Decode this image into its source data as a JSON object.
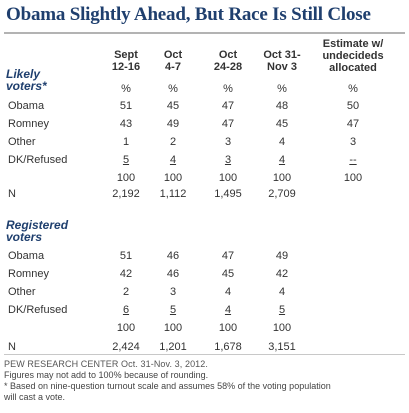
{
  "title": "Obama Slightly Ahead, But Race Is Still Close",
  "chart_data": {
    "type": "table",
    "columns": [
      {
        "line1": "Sept",
        "line2": "12-16"
      },
      {
        "line1": "Oct",
        "line2": "4-7"
      },
      {
        "line1": "Oct",
        "line2": "24-28"
      },
      {
        "line1": "Oct 31-",
        "line2": "Nov 3"
      },
      {
        "line1": "Estimate w/",
        "line2": "undecideds",
        "line3": "allocated"
      }
    ],
    "groups": [
      {
        "label_line1": "Likely",
        "label_line2": "voters*",
        "rows": [
          {
            "label": "",
            "values": [
              "%",
              "%",
              "%",
              "%",
              "%"
            ]
          },
          {
            "label": "Obama",
            "values": [
              "51",
              "45",
              "47",
              "48",
              "50"
            ]
          },
          {
            "label": "Romney",
            "values": [
              "43",
              "49",
              "47",
              "45",
              "47"
            ]
          },
          {
            "label": "Other",
            "values": [
              "1",
              "2",
              "3",
              "4",
              "3"
            ]
          },
          {
            "label": "DK/Refused",
            "values": [
              "5",
              "4",
              "3",
              "4",
              "--"
            ],
            "underline": true
          },
          {
            "label": "",
            "values": [
              "100",
              "100",
              "100",
              "100",
              "100"
            ]
          },
          {
            "label": "N",
            "values": [
              "2,192",
              "1,112",
              "1,495",
              "2,709",
              ""
            ]
          }
        ]
      },
      {
        "label_line1": "Registered",
        "label_line2": "voters",
        "rows": [
          {
            "label": "Obama",
            "values": [
              "51",
              "46",
              "47",
              "49",
              ""
            ]
          },
          {
            "label": "Romney",
            "values": [
              "42",
              "46",
              "45",
              "42",
              ""
            ]
          },
          {
            "label": "Other",
            "values": [
              "2",
              "3",
              "4",
              "4",
              ""
            ]
          },
          {
            "label": "DK/Refused",
            "values": [
              "6",
              "5",
              "4",
              "5",
              ""
            ],
            "underline": true
          },
          {
            "label": "",
            "values": [
              "100",
              "100",
              "100",
              "100",
              ""
            ]
          },
          {
            "label": "N",
            "values": [
              "2,424",
              "1,201",
              "1,678",
              "3,151",
              ""
            ]
          }
        ]
      }
    ]
  },
  "footer": {
    "source": "PEW RESEARCH CENTER Oct. 31-Nov. 3, 2012.",
    "notes": [
      "Figures may not add to 100% because of rounding.",
      "* Based on nine-question turnout scale and assumes 58% of the voting population",
      "will cast a vote."
    ]
  }
}
